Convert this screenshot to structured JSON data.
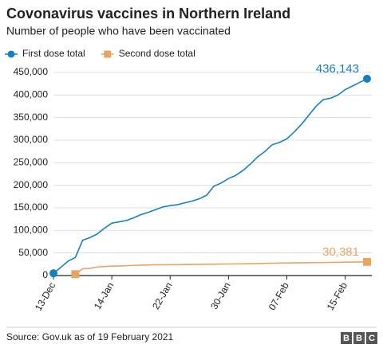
{
  "chart_data": {
    "type": "line",
    "title": "Covonavirus vaccines in Northern Ireland",
    "subtitle": "Number of people who have been vaccinated",
    "source": "Source: Gov.uk as of 19 February 2021",
    "logo": [
      "B",
      "B",
      "C"
    ],
    "categories": [
      "13-Dec",
      null,
      null,
      null,
      null,
      null,
      null,
      null,
      "14-Jan",
      null,
      null,
      null,
      null,
      null,
      null,
      null,
      "22-Jan",
      null,
      null,
      null,
      null,
      null,
      null,
      null,
      "30-Jan",
      null,
      null,
      null,
      null,
      null,
      null,
      null,
      "07-Feb",
      null,
      null,
      null,
      null,
      null,
      null,
      null,
      "15-Feb",
      null,
      null,
      null
    ],
    "series": [
      {
        "name": "First dose total",
        "color": "#1380c4",
        "marker": "circle",
        "values": [
          5000,
          18000,
          32000,
          40000,
          78000,
          84000,
          92000,
          105000,
          116000,
          119000,
          122000,
          128000,
          135000,
          140000,
          146000,
          152000,
          155000,
          157000,
          161000,
          165000,
          170000,
          178000,
          198000,
          205000,
          215000,
          222000,
          233000,
          247000,
          263000,
          275000,
          290000,
          295000,
          303000,
          318000,
          335000,
          355000,
          375000,
          390000,
          393000,
          400000,
          412000,
          420000,
          428000,
          436143
        ],
        "value_labels": [
          null,
          null,
          null,
          null,
          null,
          null,
          null,
          null,
          null,
          null,
          null,
          null,
          null,
          null,
          null,
          null,
          null,
          null,
          null,
          null,
          null,
          null,
          null,
          null,
          null,
          null,
          null,
          null,
          null,
          null,
          null,
          null,
          null,
          null,
          null,
          null,
          null,
          null,
          null,
          null,
          null,
          null,
          null,
          "436,143"
        ]
      },
      {
        "name": "Second dose total",
        "color": "#e8a463",
        "marker": "square",
        "values": [
          null,
          null,
          null,
          3000,
          15000,
          16000,
          19000,
          20000,
          21000,
          21000,
          22000,
          22500,
          23000,
          23500,
          24000,
          24000,
          24000,
          24200,
          24400,
          24600,
          24800,
          25000,
          25200,
          25400,
          25600,
          25800,
          26000,
          26300,
          26600,
          27000,
          27300,
          27600,
          27900,
          28100,
          28300,
          28500,
          28700,
          28900,
          29100,
          29300,
          29600,
          29900,
          30100,
          30381
        ],
        "value_labels": [
          null,
          null,
          null,
          null,
          null,
          null,
          null,
          null,
          null,
          null,
          null,
          null,
          null,
          null,
          null,
          null,
          null,
          null,
          null,
          null,
          null,
          null,
          null,
          null,
          null,
          null,
          null,
          null,
          null,
          null,
          null,
          null,
          null,
          null,
          null,
          null,
          null,
          null,
          null,
          null,
          null,
          null,
          null,
          "30,381"
        ]
      }
    ],
    "ylim": [
      0,
      450000
    ],
    "yticks": [
      0,
      {
        "value": 50000,
        "label": "50,000"
      },
      {
        "value": 100000,
        "label": "100,000"
      },
      {
        "value": 150000,
        "label": "150,000"
      },
      {
        "value": 200000,
        "label": "200,000"
      },
      {
        "value": 250000,
        "label": "250,000"
      },
      {
        "value": 300000,
        "label": "300,000"
      },
      {
        "value": 350000,
        "label": "350,000"
      },
      {
        "value": 400000,
        "label": "400,000"
      },
      {
        "value": 450000,
        "label": "450,000"
      }
    ],
    "grid": true
  }
}
